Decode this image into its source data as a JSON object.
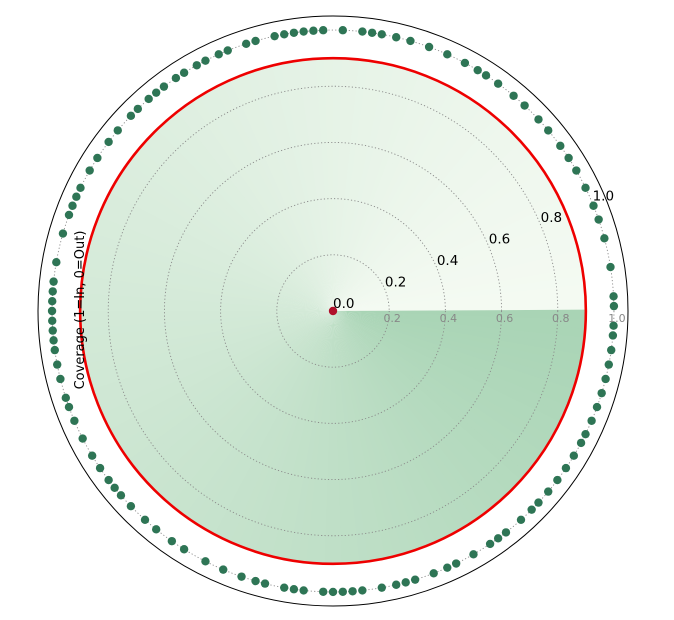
{
  "chart_data": {
    "type": "scatter",
    "projection": "polar",
    "ylabel": "Coverage (1=In, 0=Out)",
    "radial_ticks": [
      "0.0",
      "0.2",
      "0.4",
      "0.6",
      "0.8",
      "1.0"
    ],
    "inner_ticks": [
      "0.2",
      "0.4",
      "0.6",
      "0.8",
      "1.0"
    ],
    "rlim": [
      0,
      1.05
    ],
    "threshold_radius": 0.9,
    "colors": {
      "points": "#2e7555",
      "threshold": "#ee0000",
      "center": "#b0102a",
      "fill_dark": "#a9d4b5",
      "fill_light": "#f4faf2"
    },
    "center_point": {
      "theta_deg": 0,
      "r": 0
    },
    "covered_points": {
      "r": 1.0,
      "theta_deg": [
        1,
        3,
        9,
        15,
        19,
        22,
        26,
        30,
        33,
        36,
        40,
        43,
        47,
        50,
        54,
        57,
        59,
        62,
        66,
        70,
        74,
        77,
        80,
        82,
        84,
        88,
        92,
        94,
        96,
        98,
        100,
        102,
        106,
        108,
        112,
        114,
        117,
        119,
        122,
        124,
        127,
        129,
        131,
        134,
        136,
        140,
        143,
        147,
        150,
        154,
        156,
        158,
        160,
        164,
        170,
        174,
        176,
        178,
        180,
        182,
        184,
        186,
        188,
        191,
        194,
        198,
        200,
        203,
        207,
        211,
        214,
        217,
        219,
        221,
        224,
        228,
        231,
        235,
        238,
        243,
        247,
        251,
        254,
        256,
        260,
        262,
        264,
        268,
        270,
        272,
        274,
        276,
        280,
        283,
        285,
        287,
        291,
        294,
        296,
        300,
        304,
        306,
        308,
        312,
        315,
        317,
        320,
        323,
        326,
        329,
        332,
        334,
        337,
        340,
        343,
        346,
        349,
        352,
        355,
        357
      ]
    }
  }
}
